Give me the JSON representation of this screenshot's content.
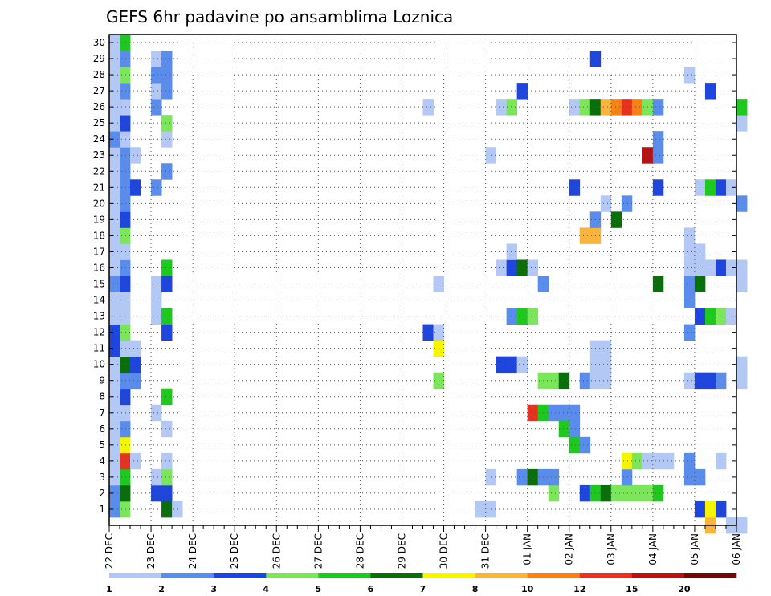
{
  "chart_data": {
    "type": "heatmap",
    "title": "GEFS 6hr padavine po ansamblima Loznica",
    "xlabel": "",
    "ylabel": "",
    "x_ticks": [
      "22 DEC",
      "23 DEC",
      "24 DEC",
      "25 DEC",
      "26 DEC",
      "27 DEC",
      "28 DEC",
      "29 DEC",
      "30 DEC",
      "31 DEC",
      "01 JAN",
      "02 JAN",
      "03 JAN",
      "04 JAN",
      "05 JAN",
      "06 JAN"
    ],
    "x_range_days": [
      0,
      15
    ],
    "steps_per_day": 4,
    "members": [
      1,
      2,
      3,
      4,
      5,
      6,
      7,
      8,
      9,
      10,
      11,
      12,
      13,
      14,
      15,
      16,
      17,
      18,
      19,
      20,
      21,
      22,
      23,
      24,
      25,
      26,
      27,
      28,
      29,
      30
    ],
    "grid": true,
    "colorbar": {
      "boundaries": [
        1,
        2,
        3,
        4,
        5,
        6,
        7,
        8,
        10,
        12,
        15,
        20
      ],
      "labels": [
        "1",
        "2",
        "3",
        "4",
        "5",
        "6",
        "7",
        "8",
        "10",
        "12",
        "15",
        "20"
      ],
      "colors": [
        "#b4c8f5",
        "#5a8ceb",
        "#1e46dc",
        "#7ce65a",
        "#1ec81e",
        "#0a6e0a",
        "#f5f500",
        "#f8b43c",
        "#f58214",
        "#e6321e",
        "#b41414",
        "#6e0a0a"
      ],
      "placement": "bottom"
    },
    "cells_note": "each cell = [time step index from 22 DEC 00Z (6h steps), member, color class index 0-11]",
    "cells": [
      [
        0,
        1,
        1
      ],
      [
        0,
        2,
        1
      ],
      [
        0,
        3,
        0
      ],
      [
        0,
        4,
        0
      ],
      [
        0,
        5,
        0
      ],
      [
        0,
        6,
        0
      ],
      [
        0,
        7,
        0
      ],
      [
        0,
        8,
        0
      ],
      [
        0,
        9,
        0
      ],
      [
        0,
        10,
        0
      ],
      [
        0,
        11,
        2
      ],
      [
        0,
        12,
        2
      ],
      [
        0,
        13,
        0
      ],
      [
        0,
        14,
        0
      ],
      [
        0,
        15,
        1
      ],
      [
        0,
        16,
        0
      ],
      [
        0,
        17,
        0
      ],
      [
        0,
        18,
        0
      ],
      [
        0,
        19,
        0
      ],
      [
        0,
        20,
        0
      ],
      [
        0,
        21,
        0
      ],
      [
        0,
        22,
        0
      ],
      [
        0,
        23,
        0
      ],
      [
        0,
        24,
        1
      ],
      [
        0,
        25,
        0
      ],
      [
        0,
        26,
        0
      ],
      [
        0,
        27,
        0
      ],
      [
        0,
        28,
        0
      ],
      [
        0,
        29,
        0
      ],
      [
        0,
        30,
        0
      ],
      [
        1,
        1,
        3
      ],
      [
        1,
        2,
        5
      ],
      [
        1,
        3,
        4
      ],
      [
        1,
        4,
        9
      ],
      [
        1,
        5,
        6
      ],
      [
        1,
        6,
        1
      ],
      [
        1,
        7,
        0
      ],
      [
        1,
        8,
        2
      ],
      [
        1,
        9,
        1
      ],
      [
        1,
        10,
        5
      ],
      [
        1,
        11,
        0
      ],
      [
        1,
        12,
        3
      ],
      [
        1,
        13,
        0
      ],
      [
        1,
        14,
        0
      ],
      [
        1,
        15,
        2
      ],
      [
        1,
        16,
        1
      ],
      [
        1,
        17,
        0
      ],
      [
        1,
        18,
        3
      ],
      [
        1,
        19,
        2
      ],
      [
        1,
        20,
        1
      ],
      [
        1,
        21,
        1
      ],
      [
        1,
        22,
        1
      ],
      [
        1,
        23,
        1
      ],
      [
        1,
        24,
        0
      ],
      [
        1,
        25,
        2
      ],
      [
        1,
        26,
        0
      ],
      [
        1,
        27,
        1
      ],
      [
        1,
        28,
        3
      ],
      [
        1,
        29,
        1
      ],
      [
        1,
        30,
        4
      ],
      [
        2,
        9,
        1
      ],
      [
        2,
        10,
        2
      ],
      [
        2,
        11,
        0
      ],
      [
        2,
        21,
        2
      ],
      [
        2,
        23,
        0
      ],
      [
        2,
        4,
        0
      ],
      [
        4,
        2,
        2
      ],
      [
        4,
        3,
        0
      ],
      [
        4,
        7,
        0
      ],
      [
        4,
        13,
        0
      ],
      [
        4,
        14,
        0
      ],
      [
        4,
        15,
        0
      ],
      [
        4,
        21,
        1
      ],
      [
        4,
        26,
        1
      ],
      [
        4,
        27,
        0
      ],
      [
        4,
        28,
        1
      ],
      [
        4,
        29,
        0
      ],
      [
        5,
        1,
        5
      ],
      [
        5,
        2,
        2
      ],
      [
        5,
        3,
        3
      ],
      [
        5,
        4,
        0
      ],
      [
        5,
        6,
        0
      ],
      [
        5,
        8,
        4
      ],
      [
        5,
        12,
        2
      ],
      [
        5,
        13,
        4
      ],
      [
        5,
        15,
        2
      ],
      [
        5,
        16,
        4
      ],
      [
        5,
        22,
        1
      ],
      [
        5,
        24,
        0
      ],
      [
        5,
        25,
        3
      ],
      [
        5,
        27,
        1
      ],
      [
        5,
        28,
        1
      ],
      [
        5,
        29,
        1
      ],
      [
        6,
        1,
        0
      ],
      [
        30,
        12,
        2
      ],
      [
        30,
        26,
        0
      ],
      [
        31,
        9,
        3
      ],
      [
        31,
        11,
        6
      ],
      [
        31,
        12,
        0
      ],
      [
        31,
        15,
        0
      ],
      [
        35,
        1,
        0
      ],
      [
        36,
        1,
        0
      ],
      [
        36,
        3,
        0
      ],
      [
        36,
        23,
        0
      ],
      [
        37,
        10,
        2
      ],
      [
        37,
        16,
        0
      ],
      [
        37,
        26,
        0
      ],
      [
        38,
        10,
        2
      ],
      [
        38,
        13,
        1
      ],
      [
        38,
        16,
        2
      ],
      [
        38,
        17,
        0
      ],
      [
        38,
        26,
        3
      ],
      [
        39,
        3,
        1
      ],
      [
        39,
        10,
        0
      ],
      [
        39,
        13,
        4
      ],
      [
        39,
        16,
        5
      ],
      [
        39,
        27,
        2
      ],
      [
        40,
        3,
        5
      ],
      [
        40,
        7,
        9
      ],
      [
        40,
        13,
        3
      ],
      [
        40,
        16,
        0
      ],
      [
        41,
        3,
        1
      ],
      [
        41,
        7,
        4
      ],
      [
        41,
        9,
        3
      ],
      [
        41,
        15,
        1
      ],
      [
        42,
        2,
        3
      ],
      [
        42,
        3,
        1
      ],
      [
        42,
        7,
        1
      ],
      [
        42,
        9,
        3
      ],
      [
        43,
        7,
        1
      ],
      [
        43,
        6,
        4
      ],
      [
        43,
        9,
        5
      ],
      [
        44,
        5,
        4
      ],
      [
        44,
        6,
        1
      ],
      [
        44,
        7,
        1
      ],
      [
        44,
        21,
        2
      ],
      [
        44,
        26,
        0
      ],
      [
        45,
        2,
        2
      ],
      [
        45,
        5,
        1
      ],
      [
        45,
        9,
        1
      ],
      [
        45,
        18,
        7
      ],
      [
        45,
        26,
        3
      ],
      [
        46,
        2,
        4
      ],
      [
        46,
        9,
        0
      ],
      [
        46,
        10,
        0
      ],
      [
        46,
        11,
        0
      ],
      [
        46,
        18,
        7
      ],
      [
        46,
        19,
        1
      ],
      [
        46,
        26,
        5
      ],
      [
        46,
        29,
        2
      ],
      [
        47,
        2,
        5
      ],
      [
        47,
        9,
        0
      ],
      [
        47,
        10,
        0
      ],
      [
        47,
        11,
        0
      ],
      [
        47,
        20,
        0
      ],
      [
        47,
        26,
        7
      ],
      [
        48,
        2,
        3
      ],
      [
        48,
        19,
        5
      ],
      [
        48,
        26,
        8
      ],
      [
        49,
        2,
        3
      ],
      [
        49,
        3,
        1
      ],
      [
        49,
        4,
        6
      ],
      [
        49,
        20,
        1
      ],
      [
        49,
        26,
        9
      ],
      [
        50,
        2,
        3
      ],
      [
        50,
        4,
        3
      ],
      [
        50,
        26,
        8
      ],
      [
        51,
        2,
        3
      ],
      [
        51,
        4,
        0
      ],
      [
        51,
        23,
        10
      ],
      [
        51,
        26,
        3
      ],
      [
        52,
        2,
        4
      ],
      [
        52,
        4,
        0
      ],
      [
        52,
        15,
        5
      ],
      [
        52,
        21,
        2
      ],
      [
        52,
        23,
        1
      ],
      [
        52,
        24,
        1
      ],
      [
        52,
        26,
        1
      ],
      [
        53,
        4,
        0
      ],
      [
        55,
        3,
        1
      ],
      [
        55,
        4,
        1
      ],
      [
        55,
        9,
        0
      ],
      [
        55,
        12,
        1
      ],
      [
        55,
        14,
        1
      ],
      [
        55,
        15,
        1
      ],
      [
        55,
        16,
        0
      ],
      [
        55,
        17,
        0
      ],
      [
        55,
        18,
        0
      ],
      [
        55,
        28,
        0
      ],
      [
        56,
        1,
        2
      ],
      [
        56,
        3,
        1
      ],
      [
        56,
        9,
        2
      ],
      [
        56,
        13,
        2
      ],
      [
        56,
        15,
        5
      ],
      [
        56,
        16,
        0
      ],
      [
        56,
        17,
        0
      ],
      [
        56,
        21,
        0
      ],
      [
        57,
        0,
        7
      ],
      [
        57,
        1,
        6
      ],
      [
        57,
        9,
        2
      ],
      [
        57,
        13,
        4
      ],
      [
        57,
        16,
        0
      ],
      [
        57,
        21,
        4
      ],
      [
        57,
        27,
        2
      ],
      [
        58,
        1,
        2
      ],
      [
        58,
        4,
        0
      ],
      [
        58,
        9,
        1
      ],
      [
        58,
        13,
        3
      ],
      [
        58,
        16,
        2
      ],
      [
        58,
        21,
        2
      ],
      [
        59,
        0,
        0
      ],
      [
        59,
        13,
        0
      ],
      [
        59,
        16,
        0
      ],
      [
        59,
        21,
        0
      ],
      [
        60,
        0,
        0
      ],
      [
        60,
        9,
        0
      ],
      [
        60,
        10,
        0
      ],
      [
        60,
        15,
        0
      ],
      [
        60,
        16,
        0
      ],
      [
        60,
        20,
        1
      ],
      [
        60,
        25,
        0
      ],
      [
        60,
        26,
        4
      ]
    ]
  }
}
